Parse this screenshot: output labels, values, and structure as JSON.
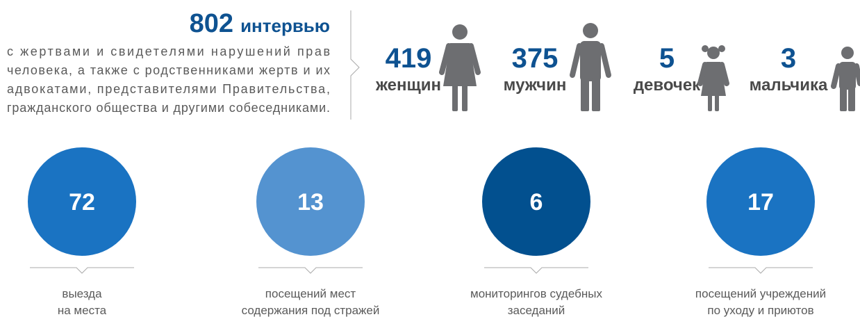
{
  "header": {
    "number": "802",
    "word": "интервью",
    "lines": [
      "с жертвами и свидетелями нарушений прав",
      "человека, а также с родственниками жертв и их",
      "адвокатами, представителями Правительства,",
      "гражданского общества и другими собеседниками."
    ]
  },
  "people": [
    {
      "number": "419",
      "label": "женщин"
    },
    {
      "number": "375",
      "label": "мужчин"
    },
    {
      "number": "5",
      "label": "девочек"
    },
    {
      "number": "3",
      "label": "мальчика"
    }
  ],
  "circles": [
    {
      "number": "72",
      "lines": [
        "выезда",
        "на места"
      ]
    },
    {
      "number": "13",
      "lines": [
        "посещений мест",
        "содержания под стражей"
      ]
    },
    {
      "number": "6",
      "lines": [
        "мониторингов судебных",
        "заседаний"
      ]
    },
    {
      "number": "17",
      "lines": [
        "посещений учреждений",
        "по уходу и приютов"
      ]
    }
  ]
}
